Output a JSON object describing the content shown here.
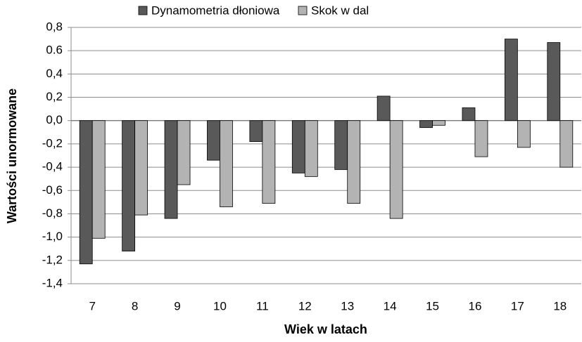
{
  "chart_data": {
    "type": "bar",
    "categories": [
      "7",
      "8",
      "9",
      "10",
      "11",
      "12",
      "13",
      "14",
      "15",
      "16",
      "17",
      "18"
    ],
    "series": [
      {
        "name": "Dynamometria dłoniowa",
        "color": "#595959",
        "values": [
          -1.23,
          -1.12,
          -0.84,
          -0.34,
          -0.18,
          -0.45,
          -0.42,
          0.21,
          -0.06,
          0.11,
          0.7,
          0.67
        ]
      },
      {
        "name": "Skok w dal",
        "color": "#b3b3b3",
        "values": [
          -1.01,
          -0.81,
          -0.55,
          -0.74,
          -0.71,
          -0.48,
          -0.71,
          -0.84,
          -0.04,
          -0.31,
          -0.23,
          -0.4
        ]
      }
    ],
    "xlabel": "Wiek w latach",
    "ylabel": "Wartości unormowane",
    "ylim": [
      -1.4,
      0.8
    ],
    "yticks": [
      {
        "value": -1.4,
        "label": "-1,4"
      },
      {
        "value": -1.2,
        "label": "-1,2"
      },
      {
        "value": -1.0,
        "label": "-1,0"
      },
      {
        "value": -0.8,
        "label": "-0,8"
      },
      {
        "value": -0.6,
        "label": "-0,6"
      },
      {
        "value": -0.4,
        "label": "-0,4"
      },
      {
        "value": -0.2,
        "label": "-0,2"
      },
      {
        "value": 0,
        "label": "0,0"
      },
      {
        "value": 0.2,
        "label": "0,2"
      },
      {
        "value": 0.4,
        "label": "0,4"
      },
      {
        "value": 0.6,
        "label": "0.6"
      },
      {
        "value": 0.8,
        "label": "0,8"
      }
    ],
    "grid": true,
    "legend": "top"
  }
}
